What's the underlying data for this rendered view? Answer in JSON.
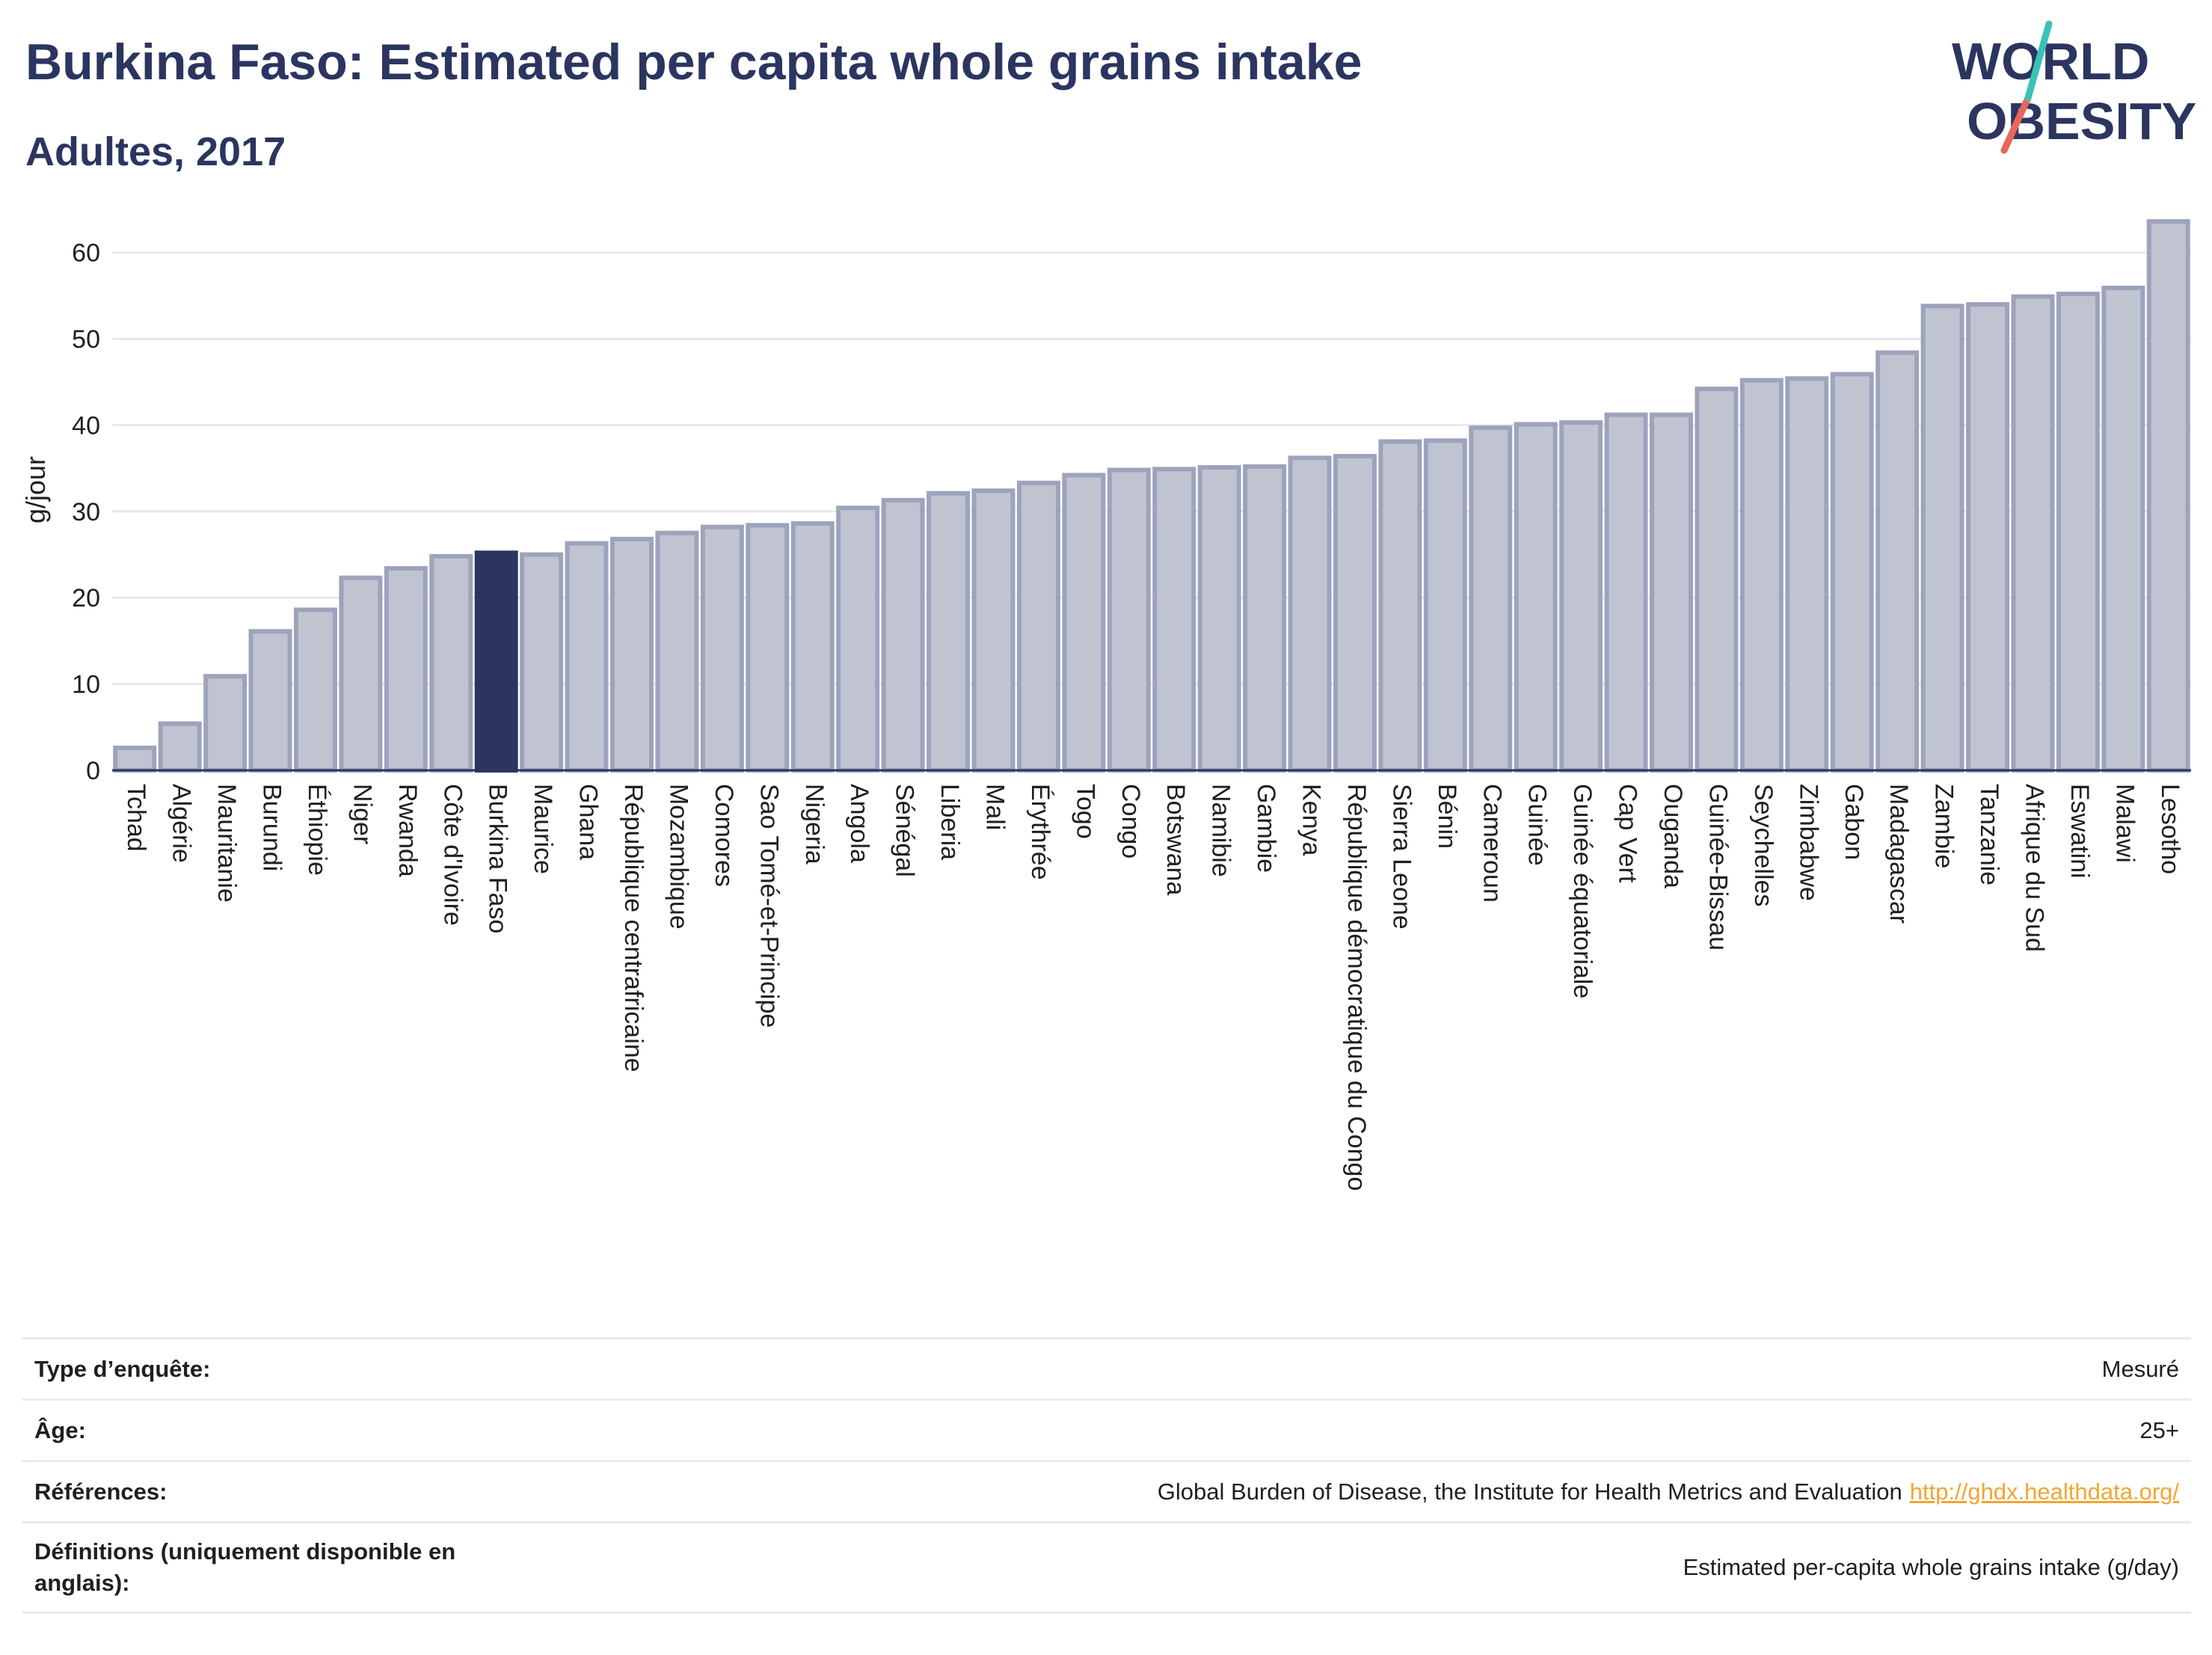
{
  "header": {
    "title": "Burkina Faso: Estimated per capita whole grains intake",
    "subtitle": "Adultes, 2017"
  },
  "logo": {
    "line1": "WORLD",
    "line2": "OBESITY",
    "colors": {
      "text": "#2b3560",
      "slash_top": "#3cc0b8",
      "slash_bottom": "#e8665a"
    }
  },
  "chart_data": {
    "type": "bar",
    "ylabel": "g/jour",
    "xlabel": "",
    "ylim": [
      0,
      65
    ],
    "yticks": [
      0,
      10,
      20,
      30,
      40,
      50,
      60
    ],
    "grid": true,
    "highlight": "Burkina Faso",
    "colors": {
      "bar": "#c0c4d1",
      "bar_edge": "#9ea3bc",
      "highlight": "#2b3560",
      "grid": "#e6e8ef",
      "axis": "#2b3560"
    },
    "categories": [
      "Tchad",
      "Algérie",
      "Mauritanie",
      "Burundi",
      "Éthiopie",
      "Niger",
      "Rwanda",
      "Côte d'Ivoire",
      "Burkina Faso",
      "Maurice",
      "Ghana",
      "République centrafricaine",
      "Mozambique",
      "Comores",
      "Sao Tomé-et-Principe",
      "Nigeria",
      "Angola",
      "Sénégal",
      "Liberia",
      "Mali",
      "Érythrée",
      "Togo",
      "Congo",
      "Botswana",
      "Namibie",
      "Gambie",
      "Kenya",
      "République démocratique du Congo",
      "Sierra Leone",
      "Bénin",
      "Cameroun",
      "Guinée",
      "Guinée équatoriale",
      "Cap Vert",
      "Ouganda",
      "Guinée-Bissau",
      "Seychelles",
      "Zimbabwe",
      "Gabon",
      "Madagascar",
      "Zambie",
      "Tanzanie",
      "Afrique du Sud",
      "Eswatini",
      "Malawi",
      "Lesotho"
    ],
    "values": [
      2.6,
      5.4,
      10.9,
      16.1,
      18.6,
      22.3,
      23.4,
      24.8,
      25.2,
      25.0,
      26.3,
      26.8,
      27.5,
      28.2,
      28.4,
      28.6,
      30.4,
      31.3,
      32.1,
      32.4,
      33.3,
      34.2,
      34.8,
      34.9,
      35.1,
      35.2,
      36.2,
      36.4,
      38.1,
      38.2,
      39.7,
      40.1,
      40.3,
      41.2,
      41.2,
      44.2,
      45.2,
      45.4,
      45.9,
      48.4,
      53.8,
      54.0,
      54.9,
      55.2,
      55.9,
      63.6
    ]
  },
  "info_table": {
    "survey_type": {
      "label": "Type d’enquête:",
      "value": "Mesuré"
    },
    "age": {
      "label": "Âge:",
      "value": "25+"
    },
    "references": {
      "label": "Références:",
      "value": "Global Burden of Disease, the Institute for Health Metrics and Evaluation",
      "link": "http://ghdx.healthdata.org/"
    },
    "definitions": {
      "label": "Définitions (uniquement disponible en anglais):",
      "value": "Estimated per-capita whole grains intake (g/day)"
    }
  }
}
